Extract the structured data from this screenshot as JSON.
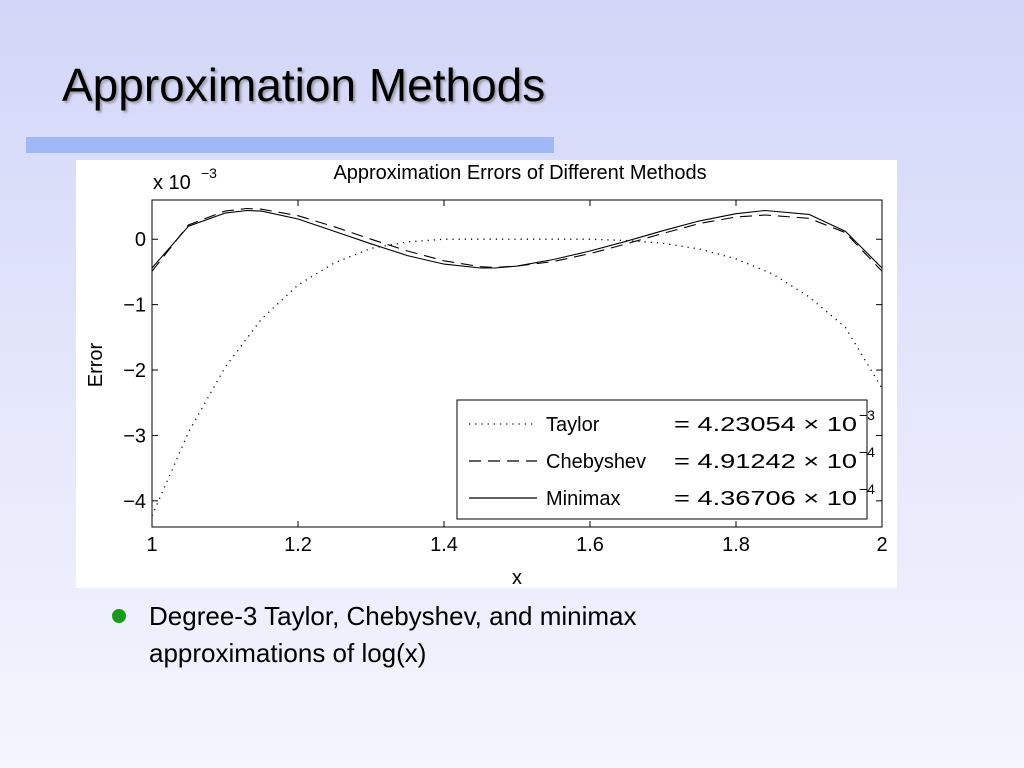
{
  "slide": {
    "title": "Approximation Methods",
    "bullet": "Degree-3 Taylor, Chebyshev, and minimax approximations of log(x)",
    "colors": {
      "bullet": "#1a9a1a",
      "title_rule": "#a2b8f6"
    }
  },
  "chart_data": {
    "type": "line",
    "title": "Approximation Errors of Different Methods",
    "xlabel": "x",
    "ylabel": "Error",
    "y_scale_label": {
      "base": "x 10",
      "exponent": "−3"
    },
    "xlim": [
      1,
      2
    ],
    "ylim": [
      -4.4,
      0.6
    ],
    "x_ticks": [
      "1",
      "1.2",
      "1.4",
      "1.6",
      "1.8",
      "2"
    ],
    "y_ticks": [
      "0",
      "−1",
      "−2",
      "−3",
      "−4"
    ],
    "grid": false,
    "legend_position": "bottom-right",
    "series": [
      {
        "name": "Taylor",
        "style": "dotted",
        "legend_value": "= 4.23054",
        "legend_power": "−3",
        "x": [
          1.0,
          1.05,
          1.1,
          1.15,
          1.2,
          1.25,
          1.3,
          1.35,
          1.4,
          1.45,
          1.5,
          1.55,
          1.6,
          1.65,
          1.7,
          1.75,
          1.8,
          1.85,
          1.9,
          1.95,
          2.0
        ],
        "y": [
          -4.23,
          -2.95,
          -1.96,
          -1.22,
          -0.7,
          -0.36,
          -0.14,
          -0.04,
          0.0,
          0.0,
          0.0,
          0.0,
          0.0,
          -0.02,
          -0.06,
          -0.15,
          -0.3,
          -0.53,
          -0.88,
          -1.35,
          -2.28
        ]
      },
      {
        "name": "Chebyshev",
        "style": "dashed",
        "legend_value": "= 4.91242",
        "legend_power": "−4",
        "x": [
          1.0,
          1.05,
          1.1,
          1.13,
          1.15,
          1.2,
          1.25,
          1.3,
          1.35,
          1.4,
          1.45,
          1.47,
          1.5,
          1.55,
          1.6,
          1.65,
          1.7,
          1.75,
          1.8,
          1.84,
          1.9,
          1.95,
          2.0
        ],
        "y": [
          -0.49,
          0.22,
          0.43,
          0.47,
          0.46,
          0.36,
          0.19,
          0.0,
          -0.18,
          -0.33,
          -0.42,
          -0.43,
          -0.41,
          -0.34,
          -0.22,
          -0.07,
          0.09,
          0.24,
          0.34,
          0.37,
          0.32,
          0.1,
          -0.49
        ]
      },
      {
        "name": "Minimax",
        "style": "solid",
        "legend_value": "= 4.36706",
        "legend_power": "−4",
        "x": [
          1.0,
          1.05,
          1.1,
          1.13,
          1.15,
          1.2,
          1.25,
          1.3,
          1.35,
          1.4,
          1.45,
          1.47,
          1.5,
          1.55,
          1.6,
          1.65,
          1.7,
          1.75,
          1.8,
          1.84,
          1.9,
          1.95,
          2.0
        ],
        "y": [
          -0.44,
          0.2,
          0.4,
          0.44,
          0.43,
          0.31,
          0.12,
          -0.07,
          -0.25,
          -0.38,
          -0.44,
          -0.44,
          -0.41,
          -0.31,
          -0.18,
          -0.03,
          0.13,
          0.28,
          0.39,
          0.44,
          0.38,
          0.12,
          -0.44
        ]
      }
    ]
  }
}
